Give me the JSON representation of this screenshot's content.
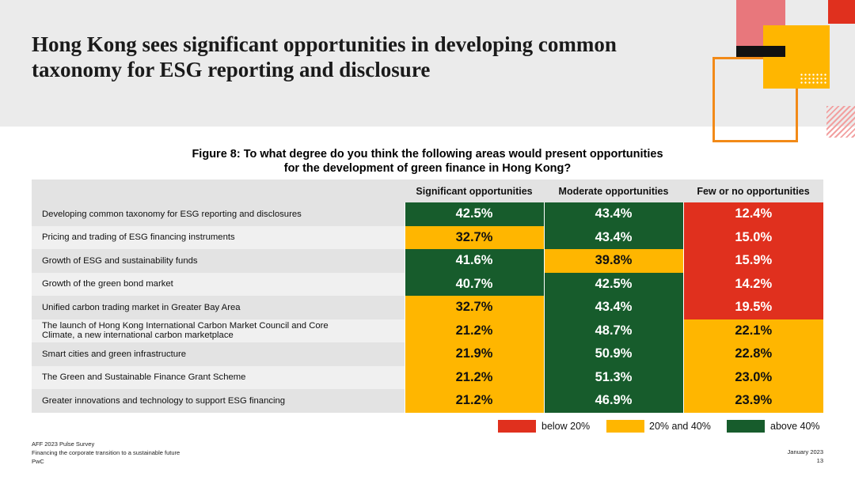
{
  "slide": {
    "title_pre": "Hong Kong sees significant opportunities in ",
    "title_bold_1": "developing common",
    "title_bold_2": "taxonomy",
    "title_post": " for ESG reporting and disclosure"
  },
  "colors": {
    "below_20": "#e0301e",
    "between_20_40": "#ffb600",
    "above_40": "#175c2c"
  },
  "chart_data": {
    "type": "table",
    "title_line1": "Figure 8: To what degree do you think the following areas would present opportunities",
    "title_line2": "for the development of green finance in Hong Kong?",
    "columns": [
      "Significant opportunities",
      "Moderate opportunities",
      "Few or no opportunities"
    ],
    "rows": [
      {
        "label": "Developing common taxonomy for ESG reporting and disclosures",
        "values": [
          "42.5%",
          "43.4%",
          "12.4%"
        ],
        "levels": [
          "high",
          "high",
          "low"
        ]
      },
      {
        "label": "Pricing and trading of ESG financing instruments",
        "values": [
          "32.7%",
          "43.4%",
          "15.0%"
        ],
        "levels": [
          "mid",
          "high",
          "low"
        ]
      },
      {
        "label": "Growth of ESG and sustainability funds",
        "values": [
          "41.6%",
          "39.8%",
          "15.9%"
        ],
        "levels": [
          "high",
          "mid",
          "low"
        ]
      },
      {
        "label": "Growth of the green bond market",
        "values": [
          "40.7%",
          "42.5%",
          "14.2%"
        ],
        "levels": [
          "high",
          "high",
          "low"
        ]
      },
      {
        "label": "Unified carbon trading market in Greater Bay Area",
        "values": [
          "32.7%",
          "43.4%",
          "19.5%"
        ],
        "levels": [
          "mid",
          "high",
          "low"
        ]
      },
      {
        "label": "The launch of Hong Kong International Carbon Market Council and Core Climate, a new international carbon marketplace",
        "values": [
          "21.2%",
          "48.7%",
          "22.1%"
        ],
        "levels": [
          "mid",
          "high",
          "mid"
        ]
      },
      {
        "label": "Smart cities and green infrastructure",
        "values": [
          "21.9%",
          "50.9%",
          "22.8%"
        ],
        "levels": [
          "mid",
          "high",
          "mid"
        ]
      },
      {
        "label": "The Green and Sustainable Finance Grant Scheme",
        "values": [
          "21.2%",
          "51.3%",
          "23.0%"
        ],
        "levels": [
          "mid",
          "high",
          "mid"
        ]
      },
      {
        "label": "Greater innovations and technology to support ESG financing",
        "values": [
          "21.2%",
          "46.9%",
          "23.9%"
        ],
        "levels": [
          "mid",
          "high",
          "mid"
        ]
      }
    ],
    "legend": [
      "below 20%",
      "20% and 40%",
      "above 40%"
    ]
  },
  "footer": {
    "source": "AFF 2023 Pulse Survey",
    "subtitle": "Financing the corporate transition to a sustainable future",
    "brand": "PwC",
    "date": "January 2023",
    "page": "13"
  }
}
